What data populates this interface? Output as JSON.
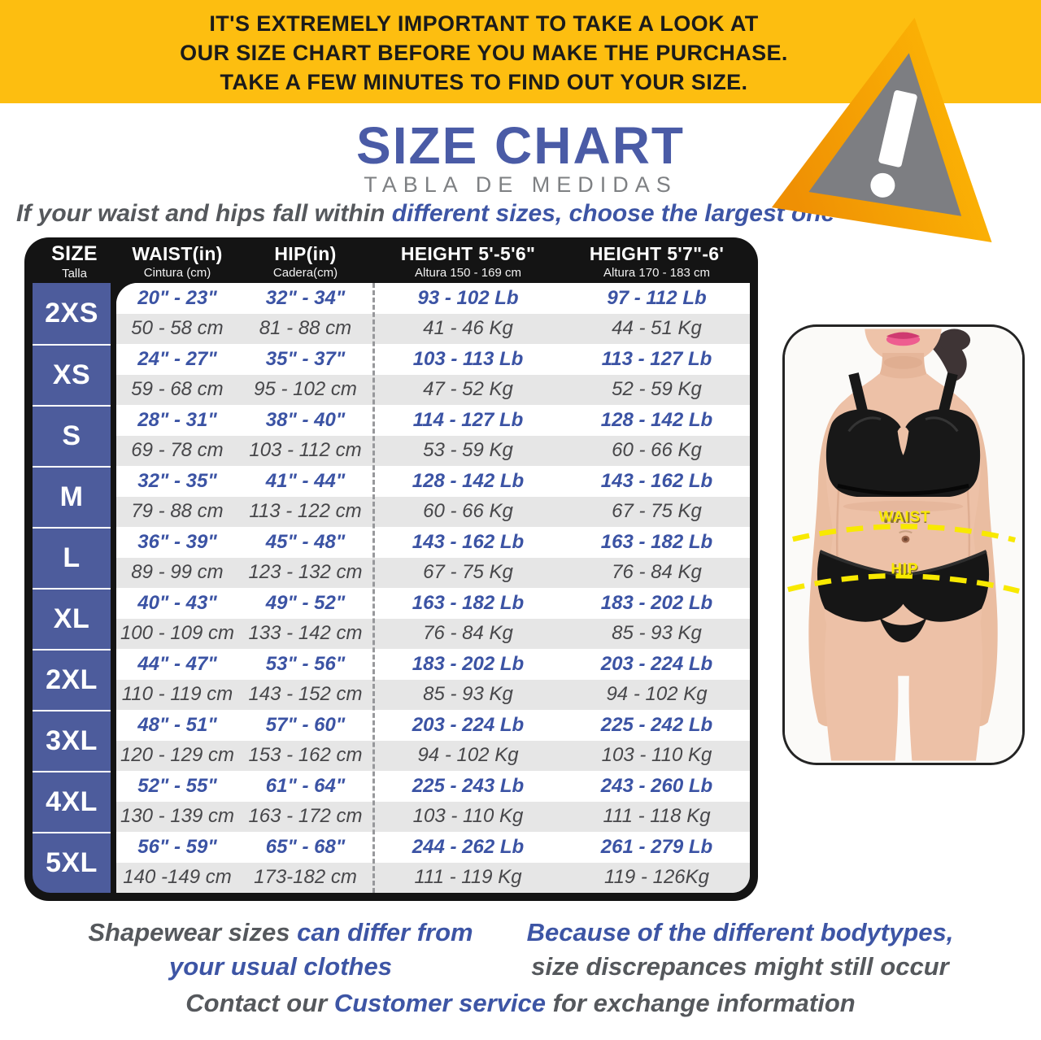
{
  "banner": {
    "line1": "IT'S EXTREMELY IMPORTANT TO TAKE A LOOK AT",
    "line2": "OUR SIZE CHART BEFORE YOU MAKE THE PURCHASE.",
    "line3": "TAKE A FEW MINUTES TO FIND OUT YOUR SIZE."
  },
  "title": {
    "main": "SIZE CHART",
    "subtitle": "TABLA DE MEDIDAS"
  },
  "instruction": {
    "normal": "If your waist and hips fall within ",
    "highlight": "different sizes, choose the largest one"
  },
  "chart_data": {
    "type": "table",
    "title": "SIZE CHART",
    "subtitle": "TABLA DE MEDIDAS",
    "headers": [
      {
        "en": "SIZE",
        "es": "Talla"
      },
      {
        "en": "WAIST(in)",
        "es": "Cintura (cm)"
      },
      {
        "en": "HIP(in)",
        "es": "Cadera(cm)"
      },
      {
        "en": "HEIGHT 5'-5'6\"",
        "es": "Altura 150 - 169 cm"
      },
      {
        "en": "HEIGHT 5'7\"-6'",
        "es": "Altura 170 - 183 cm"
      }
    ],
    "rows": [
      {
        "size": "2XS",
        "imperial": [
          "20\" - 23\"",
          "32\" - 34\"",
          "93 - 102 Lb",
          "97 - 112 Lb"
        ],
        "metric": [
          "50 - 58 cm",
          "81 - 88 cm",
          "41 - 46 Kg",
          "44 - 51 Kg"
        ]
      },
      {
        "size": "XS",
        "imperial": [
          "24\" - 27\"",
          "35\" - 37\"",
          "103 - 113 Lb",
          "113 - 127 Lb"
        ],
        "metric": [
          "59 - 68 cm",
          "95 - 102 cm",
          "47 - 52 Kg",
          "52 - 59 Kg"
        ]
      },
      {
        "size": "S",
        "imperial": [
          "28\" - 31\"",
          "38\" - 40\"",
          "114 - 127 Lb",
          "128 - 142 Lb"
        ],
        "metric": [
          "69 - 78 cm",
          "103 - 112 cm",
          "53 - 59 Kg",
          "60 - 66 Kg"
        ]
      },
      {
        "size": "M",
        "imperial": [
          "32\" - 35\"",
          "41\" - 44\"",
          "128 - 142 Lb",
          "143 - 162 Lb"
        ],
        "metric": [
          "79 - 88 cm",
          "113 - 122 cm",
          "60 - 66 Kg",
          "67 - 75 Kg"
        ]
      },
      {
        "size": "L",
        "imperial": [
          "36\" - 39\"",
          "45\" - 48\"",
          "143 - 162 Lb",
          "163 - 182 Lb"
        ],
        "metric": [
          "89 - 99 cm",
          "123 - 132 cm",
          "67 - 75 Kg",
          "76 - 84 Kg"
        ]
      },
      {
        "size": "XL",
        "imperial": [
          "40\" - 43\"",
          "49\" - 52\"",
          "163 - 182 Lb",
          "183 - 202 Lb"
        ],
        "metric": [
          "100 - 109 cm",
          "133 - 142 cm",
          "76 - 84 Kg",
          "85 - 93 Kg"
        ]
      },
      {
        "size": "2XL",
        "imperial": [
          "44\" - 47\"",
          "53\" - 56\"",
          "183 - 202 Lb",
          "203 - 224 Lb"
        ],
        "metric": [
          "110 - 119 cm",
          "143 - 152 cm",
          "85 - 93 Kg",
          "94 - 102 Kg"
        ]
      },
      {
        "size": "3XL",
        "imperial": [
          "48\" - 51\"",
          "57\" - 60\"",
          "203 - 224 Lb",
          "225 - 242 Lb"
        ],
        "metric": [
          "120 - 129 cm",
          "153 - 162 cm",
          "94 - 102 Kg",
          "103 - 110 Kg"
        ]
      },
      {
        "size": "4XL",
        "imperial": [
          "52\" - 55\"",
          "61\" - 64\"",
          "225 - 243 Lb",
          "243 - 260 Lb"
        ],
        "metric": [
          "130 - 139 cm",
          "163 - 172 cm",
          "103 - 110 Kg",
          "111 - 118 Kg"
        ]
      },
      {
        "size": "5XL",
        "imperial": [
          "56\" - 59\"",
          "65\" - 68\"",
          "244 - 262 Lb",
          "261 - 279 Lb"
        ],
        "metric": [
          "140 -149 cm",
          "173-182 cm",
          "111 - 119 Kg",
          "119 - 126Kg"
        ]
      }
    ]
  },
  "figure": {
    "waist_label": "WAIST",
    "hip_label": "HIP"
  },
  "footer": {
    "left_gray": "Shapewear sizes ",
    "left_blue1": "can differ from",
    "left_blue2": "your usual clothes",
    "right_blue": "Because of the different bodytypes,",
    "right_gray": "size discrepances  might still occur",
    "contact_pre": "Contact our ",
    "contact_link": "Customer service ",
    "contact_post": "for exchange information"
  },
  "colors": {
    "banner_yellow": "#FDBE10",
    "accent_blue": "#3D55A5",
    "title_blue": "#4A5BA6",
    "size_column_blue": "#4D5C9C",
    "header_black": "#141414",
    "row_gray": "#E6E6E6",
    "gray_text": "#55585C",
    "dash_yellow": "#F8E900",
    "triangle_gray": "#7D7E82"
  }
}
